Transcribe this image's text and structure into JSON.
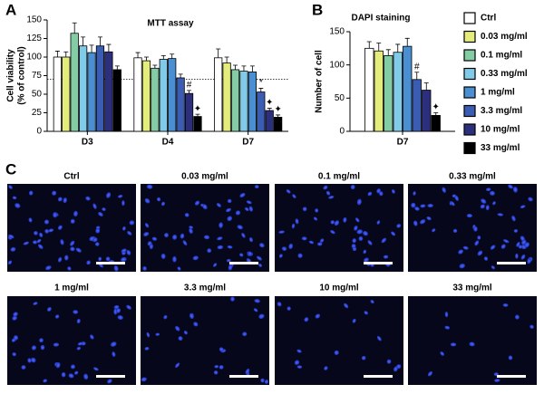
{
  "chart_data": [
    {
      "type": "bar",
      "panel": "A",
      "title": "MTT assay",
      "ylabel": [
        "Cell viability",
        "(% of control)"
      ],
      "categories": [
        "D3",
        "D4",
        "D7"
      ],
      "ylim": [
        0,
        150
      ],
      "yticks": [
        0,
        25,
        50,
        75,
        100,
        125,
        150
      ],
      "reference_line": 70,
      "series": [
        {
          "name": "Ctrl",
          "color": "#ffffff",
          "values": [
            100,
            99,
            99
          ],
          "errors": [
            8,
            7,
            12
          ]
        },
        {
          "name": "0.03 mg/ml",
          "color": "#e4ec7c",
          "values": [
            100,
            95,
            92
          ],
          "errors": [
            7,
            5,
            8
          ]
        },
        {
          "name": "0.1 mg/ml",
          "color": "#84cca4",
          "values": [
            132,
            85,
            83
          ],
          "errors": [
            14,
            4,
            6
          ]
        },
        {
          "name": "0.33 mg/ml",
          "color": "#82cbe8",
          "values": [
            115,
            97,
            81
          ],
          "errors": [
            12,
            5,
            7
          ]
        },
        {
          "name": "1 mg/ml",
          "color": "#4a8fd2",
          "values": [
            106,
            98,
            80
          ],
          "errors": [
            10,
            6,
            8
          ]
        },
        {
          "name": "3.3 mg/ml",
          "color": "#3a5cb2",
          "values": [
            115,
            72,
            53
          ],
          "errors": [
            12,
            5,
            5
          ]
        },
        {
          "name": "10 mg/ml",
          "color": "#2c2f7c",
          "values": [
            107,
            51,
            28
          ],
          "errors": [
            10,
            4,
            3
          ]
        },
        {
          "name": "33 mg/ml",
          "color": "#000000",
          "values": [
            83,
            20,
            19
          ],
          "errors": [
            5,
            3,
            3
          ]
        }
      ],
      "annotations": [
        {
          "text": "#",
          "category": 1,
          "series": 6
        },
        {
          "text": "✦",
          "category": 1,
          "series": 7
        },
        {
          "text": "*",
          "category": 2,
          "series": 5
        },
        {
          "text": "✦",
          "category": 2,
          "series": 6
        },
        {
          "text": "✦",
          "category": 2,
          "series": 7
        }
      ]
    },
    {
      "type": "bar",
      "panel": "B",
      "title": "DAPI staining",
      "ylabel": [
        "Number of cell"
      ],
      "categories": [
        "D7"
      ],
      "ylim": [
        0,
        150
      ],
      "yticks": [
        0,
        50,
        100,
        150
      ],
      "series": [
        {
          "color": "#ffffff",
          "values": [
            125
          ],
          "errors": [
            10
          ]
        },
        {
          "color": "#e4ec7c",
          "values": [
            121
          ],
          "errors": [
            12
          ]
        },
        {
          "color": "#84cca4",
          "values": [
            114
          ],
          "errors": [
            9
          ]
        },
        {
          "color": "#82cbe8",
          "values": [
            119
          ],
          "errors": [
            12
          ]
        },
        {
          "color": "#4a8fd2",
          "values": [
            128
          ],
          "errors": [
            12
          ]
        },
        {
          "color": "#3a5cb2",
          "values": [
            78
          ],
          "errors": [
            11
          ]
        },
        {
          "color": "#2c2f7c",
          "values": [
            62
          ],
          "errors": [
            11
          ]
        },
        {
          "color": "#000000",
          "values": [
            24
          ],
          "errors": [
            4
          ]
        }
      ],
      "annotations": [
        {
          "text": "#",
          "category": 0,
          "series": 5
        },
        {
          "text": "✦",
          "category": 0,
          "series": 7
        }
      ]
    }
  ],
  "panel_c": {
    "label": "C",
    "images": [
      {
        "label": "Ctrl"
      },
      {
        "label": "0.03 mg/ml"
      },
      {
        "label": "0.1 mg/ml"
      },
      {
        "label": "0.33 mg/ml"
      },
      {
        "label": "1 mg/ml"
      },
      {
        "label": "3.3 mg/ml"
      },
      {
        "label": "10 mg/ml"
      },
      {
        "label": "33 mg/ml"
      }
    ]
  }
}
